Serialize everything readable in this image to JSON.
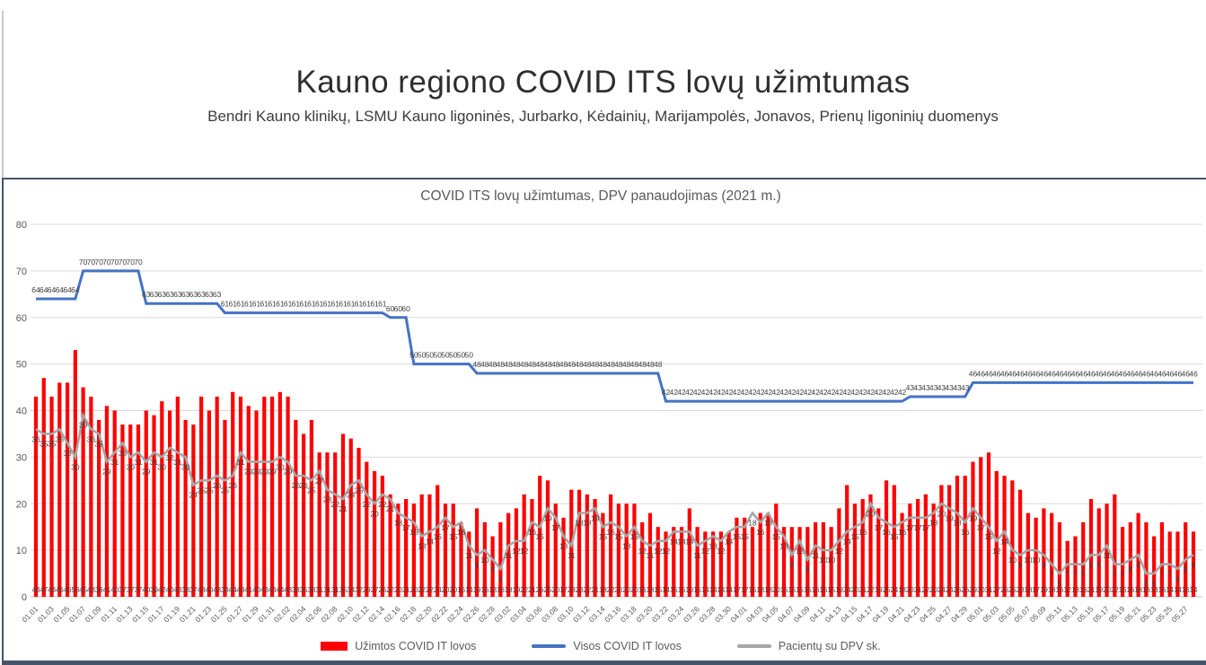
{
  "header": {
    "title": "Kauno regiono COVID ITS lovų užimtumas",
    "subtitle": "Bendri Kauno klinikų, LSMU Kauno ligoninės, Jurbarko, Kėdainių, Marijampolės, Jonavos, Prienų ligoninių duomenys"
  },
  "chart": {
    "title": "COVID ITS lovų užimtumas, DPV panaudojimas (2021 m.)"
  },
  "colors": {
    "bar_red": "#FF0000",
    "line_blue": "#4472C4",
    "line_gray": "#A6A6A6",
    "panel_border": "#44546A"
  },
  "chart_data": {
    "type": "bar",
    "title": "COVID ITS lovų užimtumas, DPV panaudojimas (2021 m.)",
    "xlabel": "",
    "ylabel": "",
    "ylim": [
      0,
      80
    ],
    "yticks": [
      0,
      10,
      20,
      30,
      40,
      50,
      60,
      70,
      80
    ],
    "grid": true,
    "legend_position": "bottom",
    "x_tick_step": 2,
    "data_labels": true,
    "x": [
      "01.01",
      "01.02",
      "01.03",
      "01.04",
      "01.05",
      "01.06",
      "01.07",
      "01.08",
      "01.09",
      "01.10",
      "01.11",
      "01.12",
      "01.13",
      "01.14",
      "01.15",
      "01.16",
      "01.17",
      "01.18",
      "01.19",
      "01.20",
      "01.21",
      "01.22",
      "01.23",
      "01.24",
      "01.25",
      "01.26",
      "01.27",
      "01.28",
      "01.29",
      "01.30",
      "01.31",
      "02.01",
      "02.02",
      "02.03",
      "02.04",
      "02.05",
      "02.06",
      "02.07",
      "02.08",
      "02.09",
      "02.10",
      "02.11",
      "02.12",
      "02.13",
      "02.14",
      "02.15",
      "02.16",
      "02.17",
      "02.18",
      "02.19",
      "02.20",
      "02.21",
      "02.22",
      "02.23",
      "02.24",
      "02.25",
      "02.26",
      "02.27",
      "02.28",
      "03.01",
      "03.02",
      "03.03",
      "03.04",
      "03.05",
      "03.06",
      "03.07",
      "03.08",
      "03.09",
      "03.10",
      "03.11",
      "03.12",
      "03.13",
      "03.14",
      "03.15",
      "03.16",
      "03.17",
      "03.18",
      "03.19",
      "03.20",
      "03.21",
      "03.22",
      "03.23",
      "03.24",
      "03.25",
      "03.26",
      "03.27",
      "03.28",
      "03.29",
      "03.30",
      "03.31",
      "04.01",
      "04.02",
      "04.03",
      "04.04",
      "04.05",
      "04.06",
      "04.07",
      "04.08",
      "04.09",
      "04.10",
      "04.11",
      "04.12",
      "04.13",
      "04.14",
      "04.15",
      "04.16",
      "04.17",
      "04.18",
      "04.19",
      "04.20",
      "04.21",
      "04.22",
      "04.23",
      "04.24",
      "04.25",
      "04.26",
      "04.27",
      "04.28",
      "04.29",
      "04.30",
      "05.01",
      "05.02",
      "05.03",
      "05.04",
      "05.05",
      "05.06",
      "05.07",
      "05.08",
      "05.09",
      "05.10",
      "05.11",
      "05.12",
      "05.13",
      "05.14",
      "05.15",
      "05.16",
      "05.17",
      "05.18",
      "05.19",
      "05.20",
      "05.21",
      "05.22",
      "05.23",
      "05.24",
      "05.25",
      "05.26",
      "05.27",
      "05.28"
    ],
    "series": [
      {
        "name": "Užimtos COVID IT lovos",
        "type": "bar",
        "color": "#FF0000",
        "values": [
          43,
          47,
          43,
          46,
          46,
          53,
          45,
          43,
          38,
          41,
          40,
          37,
          37,
          37,
          40,
          39,
          42,
          40,
          43,
          38,
          37,
          43,
          40,
          43,
          38,
          44,
          43,
          41,
          40,
          43,
          43,
          44,
          43,
          38,
          35,
          38,
          31,
          31,
          31,
          35,
          34,
          32,
          29,
          27,
          26,
          22,
          20,
          21,
          20,
          22,
          22,
          24,
          20,
          20,
          16,
          14,
          19,
          16,
          13,
          16,
          18,
          19,
          22,
          21,
          26,
          25,
          20,
          17,
          23,
          23,
          22,
          21,
          18,
          22,
          20,
          20,
          20,
          16,
          18,
          15,
          14,
          15,
          15,
          19,
          15,
          14,
          14,
          14,
          14,
          17,
          17,
          15,
          18,
          18,
          20,
          15,
          15,
          15,
          15,
          16,
          16,
          15,
          19,
          24,
          20,
          21,
          22,
          19,
          25,
          24,
          18,
          20,
          21,
          22,
          20,
          24,
          24,
          26,
          26,
          29,
          30,
          31,
          27,
          26,
          25,
          23,
          18,
          17,
          19,
          18,
          16,
          12,
          13,
          16,
          21,
          19,
          20,
          22,
          15,
          16,
          18,
          16,
          13,
          16,
          14,
          14,
          16,
          14
        ]
      },
      {
        "name": "Visos COVID IT lovos",
        "type": "line",
        "color": "#4472C4",
        "values": [
          64,
          64,
          64,
          64,
          64,
          64,
          70,
          70,
          70,
          70,
          70,
          70,
          70,
          70,
          63,
          63,
          63,
          63,
          63,
          63,
          63,
          63,
          63,
          63,
          61,
          61,
          61,
          61,
          61,
          61,
          61,
          61,
          61,
          61,
          61,
          61,
          61,
          61,
          61,
          61,
          61,
          61,
          61,
          61,
          61,
          60,
          60,
          60,
          50,
          50,
          50,
          50,
          50,
          50,
          50,
          50,
          48,
          48,
          48,
          48,
          48,
          48,
          48,
          48,
          48,
          48,
          48,
          48,
          48,
          48,
          48,
          48,
          48,
          48,
          48,
          48,
          48,
          48,
          48,
          48,
          42,
          42,
          42,
          42,
          42,
          42,
          42,
          42,
          42,
          42,
          42,
          42,
          42,
          42,
          42,
          42,
          42,
          42,
          42,
          42,
          42,
          42,
          42,
          42,
          42,
          42,
          42,
          42,
          42,
          42,
          42,
          43,
          43,
          43,
          43,
          43,
          43,
          43,
          43,
          46,
          46,
          46,
          46,
          46,
          46,
          46,
          46,
          46,
          46,
          46,
          46,
          46,
          46,
          46,
          46,
          46,
          46,
          46,
          46,
          46,
          46,
          46,
          46,
          46,
          46,
          46,
          46,
          46
        ]
      },
      {
        "name": "Pacientų su DPV sk.",
        "type": "line",
        "color": "#A6A6A6",
        "values": [
          36,
          35,
          35,
          36,
          33,
          30,
          39,
          36,
          35,
          29,
          31,
          33,
          30,
          31,
          29,
          31,
          30,
          32,
          31,
          30,
          24,
          25,
          25,
          26,
          25,
          26,
          31,
          29,
          29,
          29,
          29,
          30,
          29,
          26,
          26,
          25,
          27,
          23,
          22,
          21,
          24,
          25,
          22,
          20,
          22,
          21,
          18,
          17,
          16,
          13,
          14,
          15,
          17,
          15,
          16,
          11,
          9,
          10,
          8,
          6,
          11,
          12,
          12,
          16,
          15,
          19,
          17,
          13,
          11,
          18,
          18,
          19,
          15,
          16,
          15,
          13,
          15,
          12,
          11,
          12,
          12,
          14,
          14,
          14,
          11,
          12,
          13,
          12,
          14,
          15,
          15,
          18,
          16,
          18,
          15,
          13,
          9,
          12,
          8,
          11,
          10,
          10,
          12,
          14,
          15,
          16,
          20,
          17,
          16,
          15,
          16,
          17,
          17,
          17,
          18,
          20,
          19,
          18,
          16,
          19,
          17,
          15,
          12,
          14,
          10,
          9,
          10,
          10,
          9,
          7,
          5,
          7,
          7,
          7,
          9,
          9,
          11,
          7,
          7,
          8,
          9,
          5,
          5,
          7,
          7,
          6,
          8,
          9
        ]
      }
    ]
  }
}
